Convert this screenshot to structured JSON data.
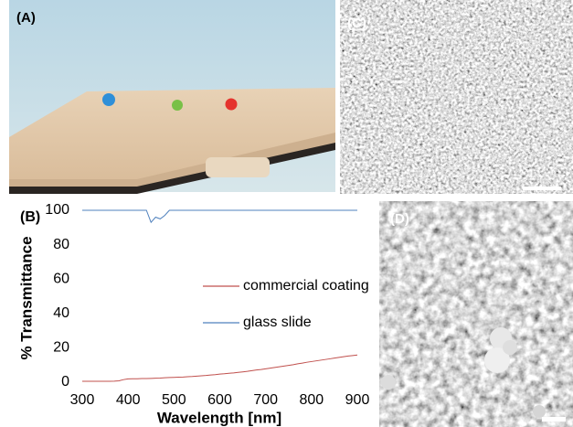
{
  "panels": {
    "a": "(A)",
    "c": "(C)",
    "d": "(D)"
  },
  "chart_data": {
    "type": "line",
    "label": "(B)",
    "x_label": "Wavelength [nm]",
    "y_label": "% Transmittance",
    "x": [
      300,
      310,
      320,
      330,
      340,
      350,
      360,
      370,
      380,
      390,
      400,
      410,
      420,
      430,
      440,
      450,
      460,
      470,
      480,
      490,
      500,
      510,
      520,
      530,
      540,
      550,
      560,
      570,
      580,
      590,
      600,
      610,
      620,
      630,
      640,
      650,
      660,
      670,
      680,
      690,
      700,
      710,
      720,
      730,
      740,
      750,
      760,
      770,
      780,
      790,
      800,
      810,
      820,
      830,
      840,
      850,
      860,
      870,
      880,
      890,
      900
    ],
    "series": [
      {
        "name": "commercial coating",
        "color": "#c0504d",
        "values": [
          0.5,
          0.5,
          0.5,
          0.5,
          0.5,
          0.5,
          0.5,
          0.6,
          0.8,
          1.5,
          1.9,
          2,
          2,
          2.1,
          2.1,
          2.2,
          2.3,
          2.4,
          2.6,
          2.7,
          2.8,
          2.9,
          3,
          3.2,
          3.3,
          3.5,
          3.7,
          3.9,
          4.2,
          4.4,
          4.7,
          4.9,
          5.2,
          5.4,
          5.7,
          6,
          6.3,
          6.7,
          7.1,
          7.4,
          7.8,
          8.2,
          8.6,
          9,
          9.4,
          9.8,
          10.2,
          10.7,
          11.1,
          11.6,
          12,
          12.4,
          12.8,
          13.2,
          13.6,
          14,
          14.4,
          14.8,
          15.2,
          15.5,
          15.8
        ]
      },
      {
        "name": "glass slide",
        "color": "#4f81bd",
        "values": [
          100,
          100,
          100,
          100,
          100,
          100,
          100,
          100,
          100,
          100,
          100,
          100,
          100,
          100,
          100,
          93,
          96,
          95,
          97,
          100,
          100,
          100,
          100,
          100,
          100,
          100,
          100,
          100,
          100,
          100,
          100,
          100,
          100,
          100,
          100,
          100,
          100,
          100,
          100,
          100,
          100,
          100,
          100,
          100,
          100,
          100,
          100,
          100,
          100,
          100,
          100,
          100,
          100,
          100,
          100,
          100,
          100,
          100,
          100,
          100,
          100
        ]
      }
    ],
    "xlim": [
      300,
      900
    ],
    "ylim": [
      0,
      100
    ],
    "xticks": [
      300,
      400,
      500,
      600,
      700,
      800,
      900
    ],
    "yticks": [
      0,
      20,
      40,
      60,
      80,
      100
    ],
    "grid": false
  }
}
